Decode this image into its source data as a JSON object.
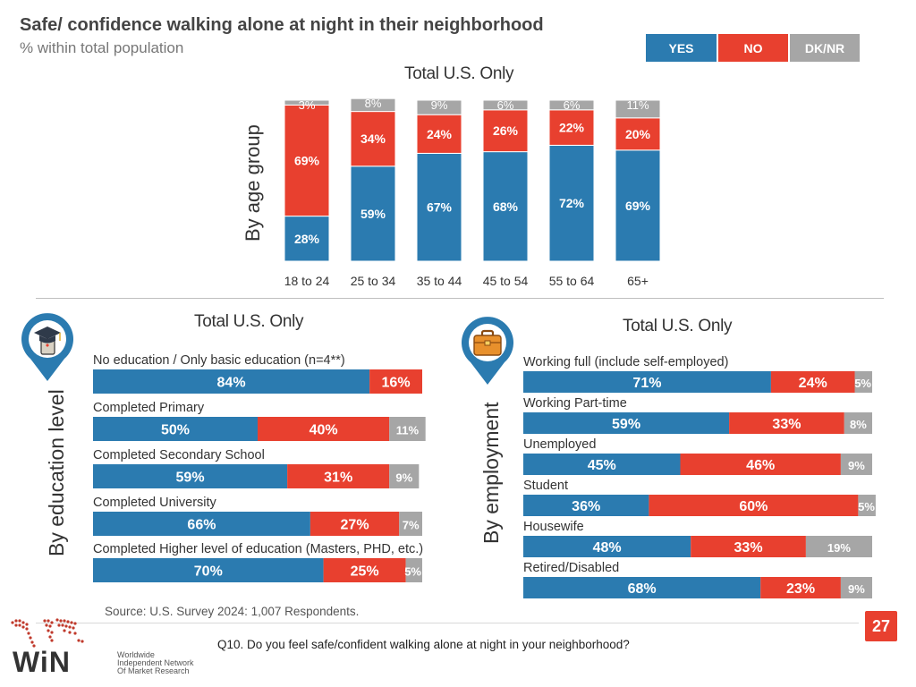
{
  "header": {
    "title": "Safe/ confidence walking alone at night in their neighborhood",
    "subtitle": "% within total population"
  },
  "legend": [
    {
      "label": "YES",
      "color": "#2b7bb0"
    },
    {
      "label": "NO",
      "color": "#e8402f"
    },
    {
      "label": "DK/NR",
      "color": "#a6a6a6"
    }
  ],
  "colors": {
    "yes": "#2b7bb0",
    "no": "#e8402f",
    "dk": "#a6a6a6",
    "pin": "#2b7bb0",
    "pin_icon": "#e8402f"
  },
  "sections": {
    "age_title": "Total U.S. Only",
    "age_axis": "By age group",
    "edu_title": "Total U.S. Only",
    "edu_axis": "By education level",
    "emp_title": "Total U.S. Only",
    "emp_axis": "By employment"
  },
  "chart_data": [
    {
      "type": "bar",
      "stacked": true,
      "orientation": "vertical",
      "title": "Total U.S. Only",
      "xlabel": "",
      "ylabel": "By age group",
      "ylim": [
        0,
        100
      ],
      "categories": [
        "18 to 24",
        "25 to 34",
        "35 to 44",
        "45 to 54",
        "55 to 64",
        "65+"
      ],
      "series": [
        {
          "name": "YES",
          "values": [
            28,
            59,
            67,
            68,
            72,
            69
          ],
          "labels": [
            "28%",
            "59%",
            "67%",
            "68%",
            "72%",
            "69%"
          ]
        },
        {
          "name": "NO",
          "values": [
            69,
            34,
            24,
            26,
            22,
            20
          ],
          "labels": [
            "69%",
            "34%",
            "24%",
            "26%",
            "22%",
            "20%"
          ]
        },
        {
          "name": "DK/NR",
          "values": [
            3,
            8,
            9,
            6,
            6,
            11
          ],
          "labels": [
            "3%",
            "8%",
            "9%",
            "6%",
            "6%",
            "11%"
          ]
        }
      ]
    },
    {
      "type": "bar",
      "stacked": true,
      "orientation": "horizontal",
      "title": "Total U.S. Only",
      "ylabel": "By education level",
      "categories": [
        "No education / Only basic education (n=4**)",
        "Completed Primary",
        "Completed Secondary School",
        "Completed University",
        "Completed Higher level of education (Masters, PHD, etc.)"
      ],
      "series": [
        {
          "name": "YES",
          "values": [
            84,
            50,
            59,
            66,
            70
          ],
          "labels": [
            "84%",
            "50%",
            "59%",
            "66%",
            "70%"
          ]
        },
        {
          "name": "NO",
          "values": [
            16,
            40,
            31,
            27,
            25
          ],
          "labels": [
            "16%",
            "40%",
            "31%",
            "27%",
            "25%"
          ]
        },
        {
          "name": "DK/NR",
          "values": [
            0,
            11,
            9,
            7,
            5
          ],
          "labels": [
            "",
            "11%",
            "9%",
            "7%",
            "5%"
          ]
        }
      ]
    },
    {
      "type": "bar",
      "stacked": true,
      "orientation": "horizontal",
      "title": "Total U.S. Only",
      "ylabel": "By employment",
      "categories": [
        "Working full (include self-employed)",
        "Working Part-time",
        "Unemployed",
        "Student",
        "Housewife",
        "Retired/Disabled"
      ],
      "series": [
        {
          "name": "YES",
          "values": [
            71,
            59,
            45,
            36,
            48,
            68
          ],
          "labels": [
            "71%",
            "59%",
            "45%",
            "36%",
            "48%",
            "68%"
          ]
        },
        {
          "name": "NO",
          "values": [
            24,
            33,
            46,
            60,
            33,
            23
          ],
          "labels": [
            "24%",
            "33%",
            "46%",
            "60%",
            "33%",
            "23%"
          ]
        },
        {
          "name": "DK/NR",
          "values": [
            5,
            8,
            9,
            5,
            19,
            9
          ],
          "labels": [
            "5%",
            "8%",
            "9%",
            "5%",
            "19%",
            "9%"
          ]
        }
      ]
    }
  ],
  "footer": {
    "source": "Source: U.S. Survey 2024: 1,007 Respondents.",
    "question": "Q10. Do you feel safe/confident walking alone at night in your neighborhood?",
    "page": "27",
    "logo_word": "WiN",
    "logo_line1": "Worldwide",
    "logo_line2": "Independent Network",
    "logo_line3": "Of Market Research"
  }
}
